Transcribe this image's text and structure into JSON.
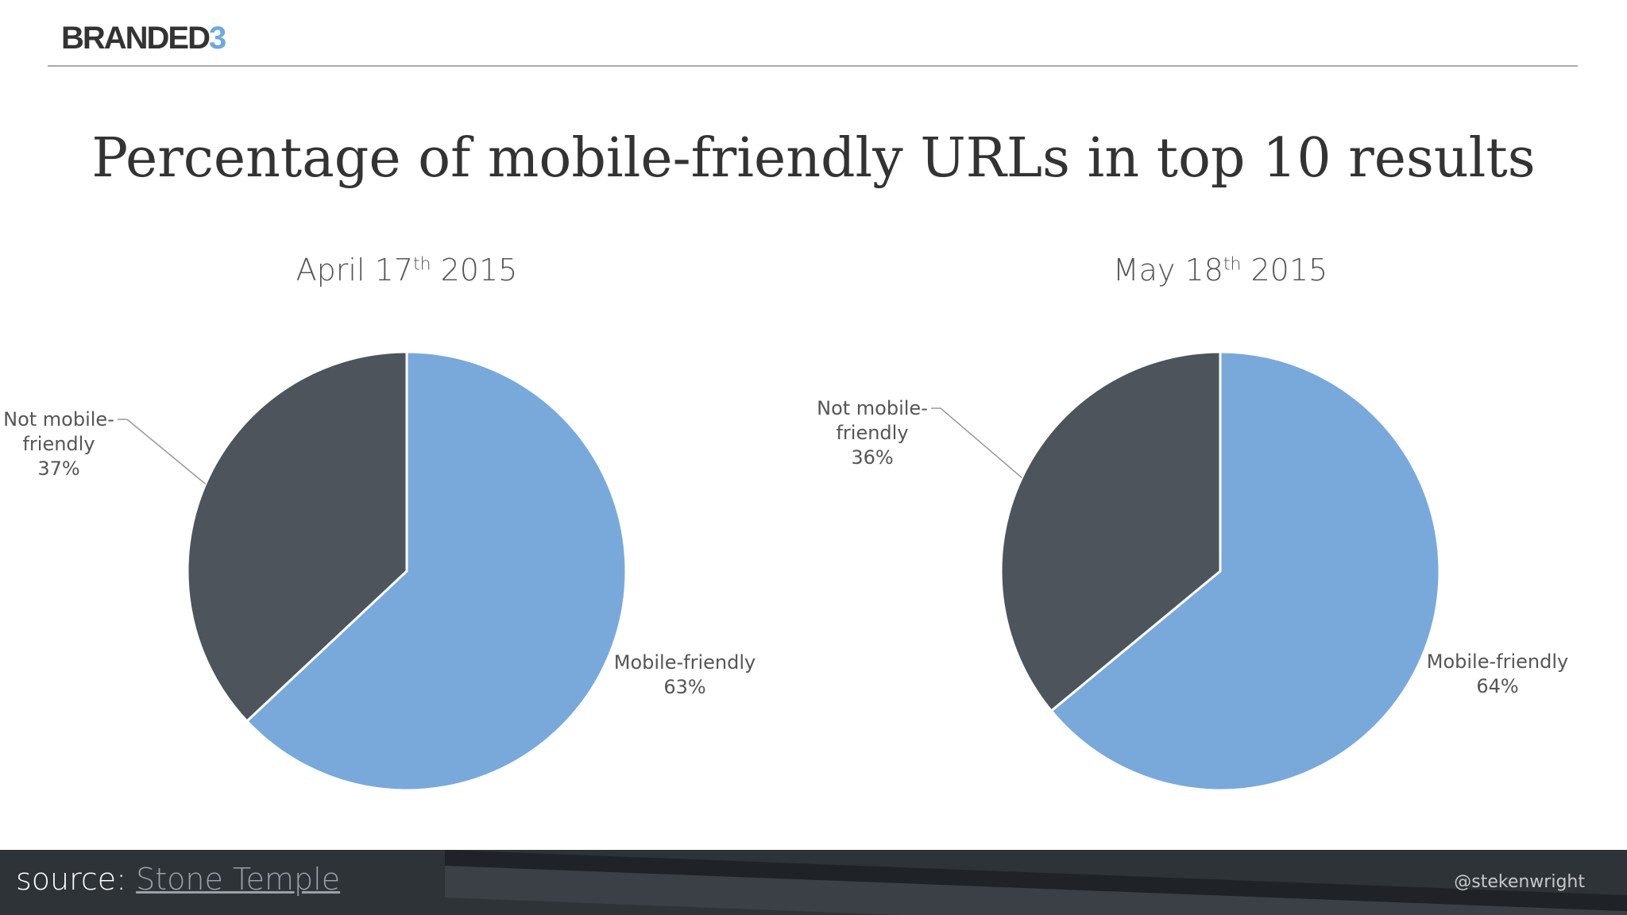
{
  "logo": {
    "main": "BRANDED",
    "accent": "3"
  },
  "title": "Percentage of mobile-friendly URLs in top 10 results",
  "colors": {
    "mobile_friendly": "#79a9db",
    "not_mobile_friendly": "#4d545c",
    "accent": "#6fa8dc"
  },
  "chart_data": [
    {
      "type": "pie",
      "title": {
        "pre": "April 17",
        "sup": "th",
        "post": " 2015"
      },
      "slices": [
        {
          "label_line1": "Mobile-friendly",
          "label_line2": "",
          "value": 63,
          "value_label": "63%"
        },
        {
          "label_line1": "Not mobile-",
          "label_line2": "friendly",
          "value": 37,
          "value_label": "37%"
        }
      ]
    },
    {
      "type": "pie",
      "title": {
        "pre": "May 18",
        "sup": "th",
        "post": " 2015"
      },
      "slices": [
        {
          "label_line1": "Mobile-friendly",
          "label_line2": "",
          "value": 64,
          "value_label": "64%"
        },
        {
          "label_line1": "Not mobile-",
          "label_line2": "friendly",
          "value": 36,
          "value_label": "36%"
        }
      ]
    }
  ],
  "footer": {
    "source_prefix": "source:",
    "source_link": "Stone Temple",
    "handle": "@stekenwright"
  }
}
